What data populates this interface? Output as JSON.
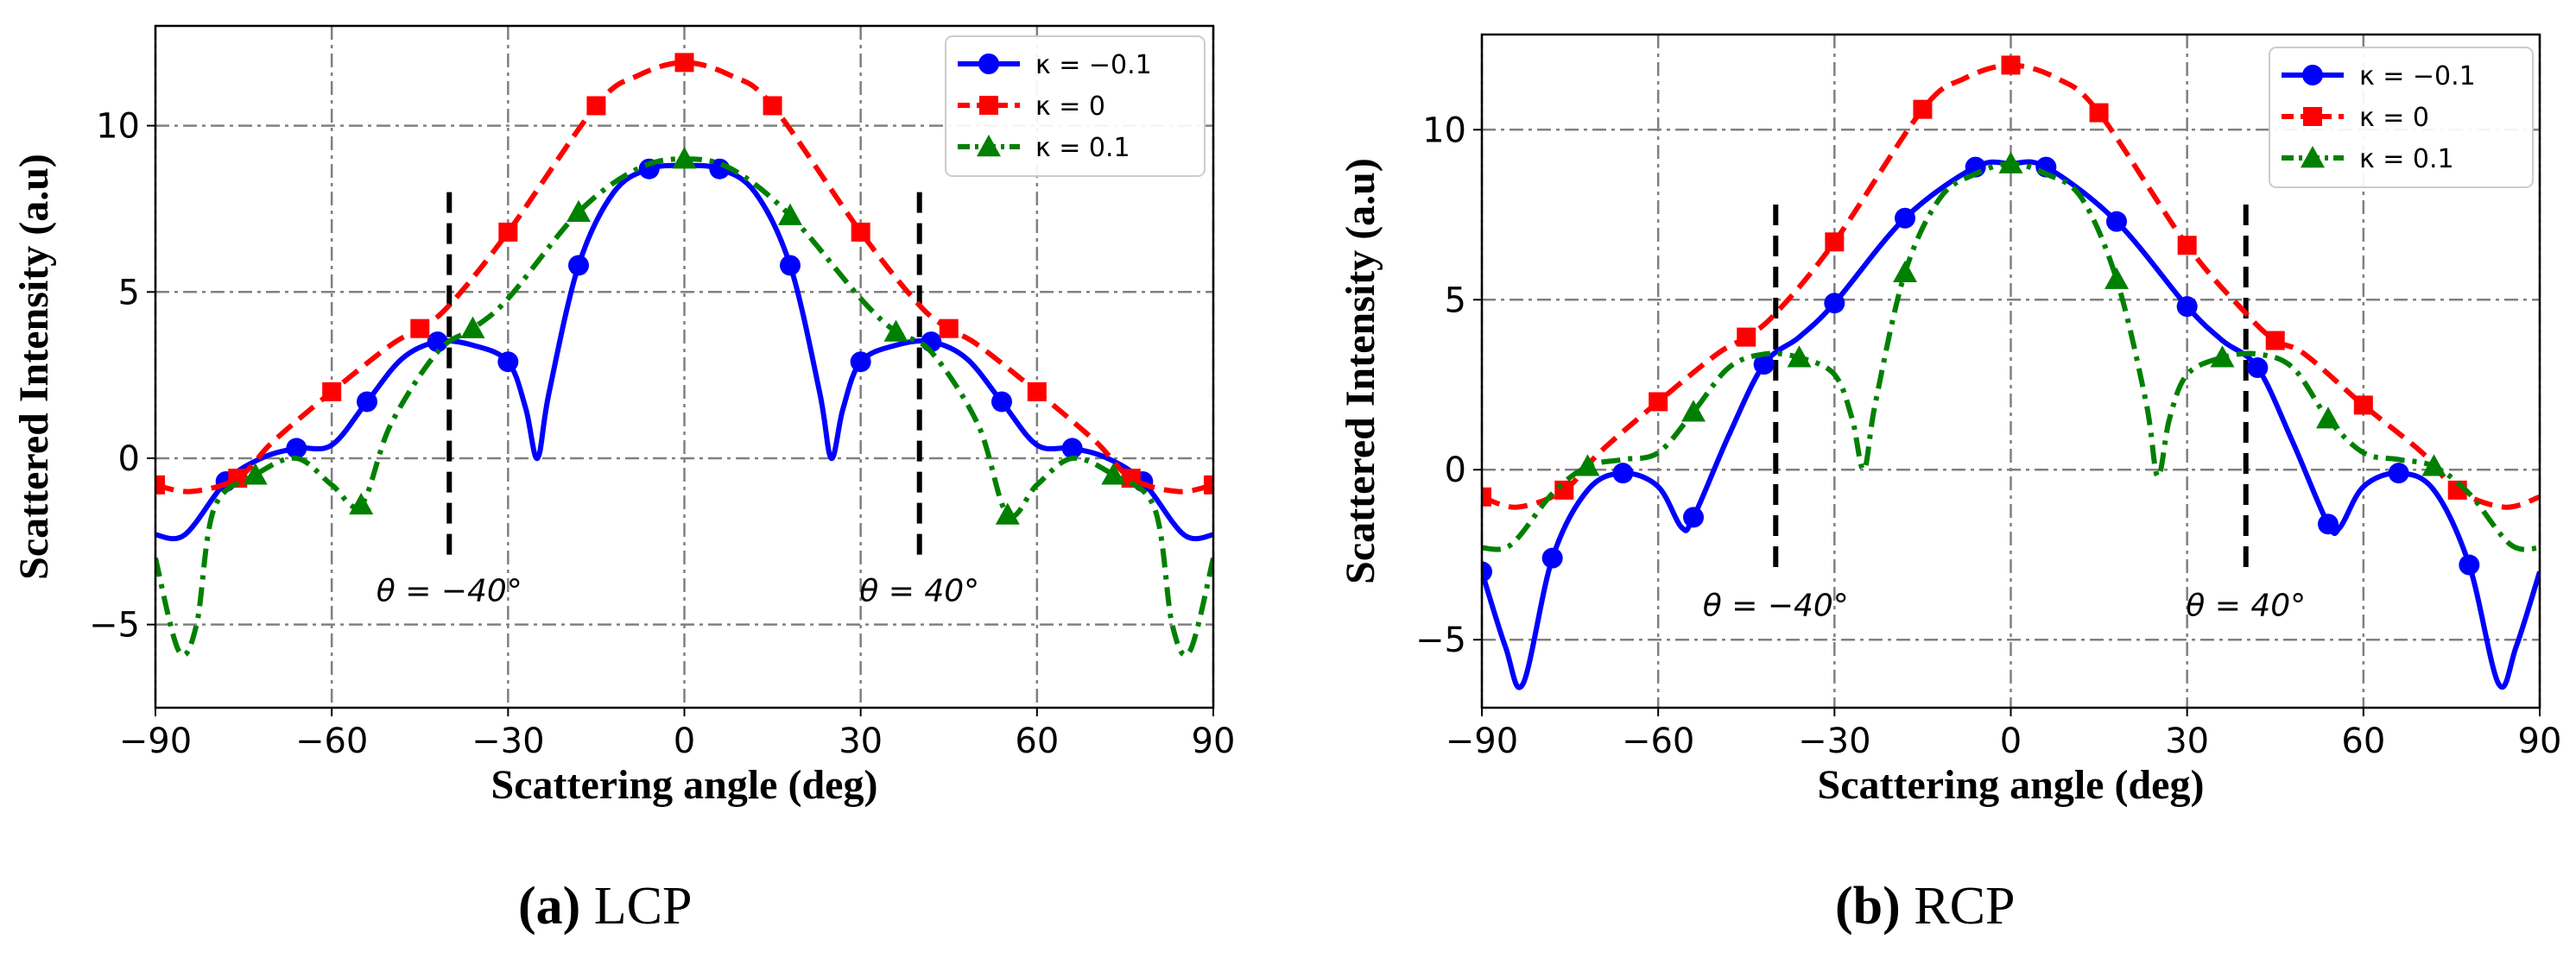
{
  "captions": [
    {
      "label": "(a)",
      "text": "LCP"
    },
    {
      "label": "(b)",
      "text": "RCP"
    }
  ],
  "colors": {
    "k_neg": "#0000ff",
    "k_zero": "#ff0000",
    "k_pos": "#008000",
    "grid": "#808080",
    "marker_line": "#000000"
  },
  "chart_data": [
    {
      "type": "line",
      "panel": "LCP",
      "xlabel": "Scattering angle (deg)",
      "ylabel": "Scattered Intensity (a.u)",
      "xlim": [
        -90,
        90
      ],
      "ylim": [
        -7.5,
        13.0
      ],
      "xticks": [
        -90,
        -60,
        -30,
        0,
        30,
        60,
        90
      ],
      "yticks": [
        -5,
        0,
        5,
        10
      ],
      "grid": true,
      "legend_position": "top-right",
      "annotations": [
        {
          "text": "θ = −40°",
          "x": -40,
          "line_y": [
            -3.0,
            8.0
          ]
        },
        {
          "text": "θ = 40°",
          "x": 40,
          "line_y": [
            -3.0,
            8.0
          ]
        }
      ],
      "series": [
        {
          "name": "κ = −0.1",
          "style": "solid",
          "marker": "circle",
          "x": [
            -90,
            -85,
            -78,
            -72,
            -66,
            -60,
            -54,
            -48,
            -42,
            -36,
            -30,
            -27,
            -25,
            -23,
            -18,
            -12,
            -6,
            0,
            6,
            12,
            18,
            23,
            25,
            27,
            30,
            36,
            42,
            48,
            54,
            60,
            66,
            72,
            78,
            85,
            90
          ],
          "y": [
            -2.3,
            -2.3,
            -0.7,
            0.0,
            0.3,
            0.4,
            1.7,
            3.0,
            3.5,
            3.4,
            2.9,
            1.5,
            0.0,
            2.0,
            5.8,
            8.0,
            8.7,
            8.8,
            8.7,
            8.0,
            5.8,
            2.0,
            0.0,
            1.5,
            2.9,
            3.4,
            3.5,
            3.0,
            1.7,
            0.4,
            0.3,
            0.0,
            -0.7,
            -2.3,
            -2.3
          ],
          "marker_x": [
            -78,
            -66,
            -54,
            -42,
            -30,
            -18,
            -6,
            6,
            18,
            30,
            42,
            54,
            66,
            78
          ],
          "marker_y": [
            -0.7,
            0.3,
            1.7,
            3.5,
            2.9,
            5.8,
            8.7,
            8.7,
            5.8,
            2.9,
            3.5,
            1.7,
            0.3,
            -0.7
          ]
        },
        {
          "name": "κ = 0",
          "style": "dashed",
          "marker": "square",
          "x": [
            -90,
            -84,
            -76,
            -70,
            -60,
            -50,
            -45,
            -40,
            -30,
            -15,
            -8,
            0,
            8,
            15,
            30,
            40,
            45,
            50,
            60,
            70,
            76,
            84,
            90
          ],
          "y": [
            -0.8,
            -1.0,
            -0.6,
            0.5,
            2.0,
            3.4,
            3.9,
            4.6,
            6.8,
            10.6,
            11.5,
            11.9,
            11.5,
            10.6,
            6.8,
            4.6,
            3.9,
            3.4,
            2.0,
            0.5,
            -0.6,
            -1.0,
            -0.8
          ],
          "marker_x": [
            -90,
            -76,
            -60,
            -45,
            -30,
            -15,
            0,
            15,
            30,
            45,
            60,
            76,
            90
          ],
          "marker_y": [
            -0.8,
            -0.6,
            2.0,
            3.9,
            6.8,
            10.6,
            11.9,
            10.6,
            6.8,
            3.9,
            2.0,
            -0.6,
            -0.8
          ]
        },
        {
          "name": "κ = 0.1",
          "style": "dashdot",
          "marker": "triangle",
          "x": [
            -90,
            -86,
            -83,
            -80,
            -73,
            -66,
            -60,
            -55,
            -50,
            -42,
            -36,
            -30,
            -18,
            -8,
            0,
            8,
            18,
            30,
            36,
            42,
            50,
            55,
            60,
            66,
            73,
            80,
            83,
            86,
            90
          ],
          "y": [
            -3.0,
            -5.8,
            -5.0,
            -1.5,
            -0.5,
            0.0,
            -0.8,
            -1.4,
            1.0,
            3.2,
            3.9,
            4.8,
            7.4,
            8.7,
            9.0,
            8.7,
            7.3,
            4.8,
            3.8,
            3.2,
            1.0,
            -1.7,
            -0.8,
            0.0,
            -0.5,
            -1.5,
            -5.0,
            -5.8,
            -3.0
          ],
          "marker_x": [
            -73,
            -55,
            -36,
            -18,
            0,
            18,
            36,
            55,
            73
          ],
          "marker_y": [
            -0.5,
            -1.4,
            3.9,
            7.4,
            9.0,
            7.3,
            3.8,
            -1.7,
            -0.5
          ]
        }
      ]
    },
    {
      "type": "line",
      "panel": "RCP",
      "xlabel": "Scattering angle (deg)",
      "ylabel": "Scattered Intensity (a.u)",
      "xlim": [
        -90,
        90
      ],
      "ylim": [
        -7.0,
        12.8
      ],
      "xticks": [
        -90,
        -60,
        -30,
        0,
        30,
        60,
        90
      ],
      "yticks": [
        -5,
        0,
        5,
        10
      ],
      "grid": true,
      "legend_position": "top-right",
      "annotations": [
        {
          "text": "θ = −40°",
          "x": -40,
          "line_y": [
            -3.0,
            7.8
          ]
        },
        {
          "text": "θ = 40°",
          "x": 40,
          "line_y": [
            -3.0,
            7.8
          ]
        }
      ],
      "series": [
        {
          "name": "κ = −0.1",
          "style": "solid",
          "marker": "circle",
          "x": [
            -90,
            -86,
            -83,
            -78,
            -72,
            -66,
            -60,
            -56,
            -54,
            -48,
            -42,
            -36,
            -30,
            -18,
            -6,
            0,
            6,
            18,
            30,
            36,
            42,
            48,
            54,
            56,
            60,
            66,
            72,
            78,
            83,
            86,
            90
          ],
          "y": [
            -3.0,
            -5.2,
            -6.3,
            -2.6,
            -0.6,
            -0.1,
            -0.5,
            -1.7,
            -1.4,
            1.0,
            3.1,
            3.9,
            4.9,
            7.4,
            8.9,
            9.0,
            8.9,
            7.3,
            4.8,
            3.8,
            3.0,
            0.8,
            -1.6,
            -1.7,
            -0.5,
            -0.1,
            -0.6,
            -2.8,
            -6.3,
            -5.2,
            -3.0
          ],
          "marker_x": [
            -90,
            -78,
            -66,
            -54,
            -42,
            -30,
            -18,
            -6,
            6,
            18,
            30,
            42,
            54,
            66,
            78
          ],
          "marker_y": [
            -3.0,
            -2.6,
            -0.1,
            -1.4,
            3.1,
            4.9,
            7.4,
            8.9,
            8.9,
            7.3,
            4.8,
            3.0,
            -1.6,
            -0.1,
            -2.8
          ]
        },
        {
          "name": "κ = 0",
          "style": "dashed",
          "marker": "square",
          "x": [
            -90,
            -84,
            -76,
            -70,
            -60,
            -50,
            -45,
            -40,
            -30,
            -15,
            -8,
            0,
            8,
            15,
            30,
            40,
            45,
            50,
            60,
            70,
            76,
            84,
            90
          ],
          "y": [
            -0.8,
            -1.1,
            -0.6,
            0.5,
            2.0,
            3.4,
            3.9,
            4.6,
            6.7,
            10.6,
            11.5,
            11.9,
            11.5,
            10.5,
            6.6,
            4.6,
            3.8,
            3.4,
            1.9,
            0.5,
            -0.6,
            -1.1,
            -0.8
          ],
          "marker_x": [
            -90,
            -76,
            -60,
            -45,
            -30,
            -15,
            0,
            15,
            30,
            45,
            60,
            76
          ],
          "marker_y": [
            -0.8,
            -0.6,
            2.0,
            3.9,
            6.7,
            10.6,
            11.9,
            10.5,
            6.6,
            3.8,
            1.9,
            -0.6
          ]
        },
        {
          "name": "κ = 0.1",
          "style": "dashdot",
          "marker": "triangle",
          "x": [
            -90,
            -85,
            -78,
            -72,
            -66,
            -60,
            -54,
            -48,
            -42,
            -36,
            -30,
            -27,
            -25,
            -23,
            -18,
            -12,
            -6,
            0,
            6,
            12,
            18,
            23,
            25,
            27,
            30,
            36,
            42,
            48,
            54,
            60,
            66,
            72,
            78,
            85,
            90
          ],
          "y": [
            -2.3,
            -2.2,
            -0.7,
            0.1,
            0.3,
            0.5,
            1.7,
            3.0,
            3.4,
            3.3,
            2.8,
            1.5,
            0.0,
            2.0,
            5.8,
            8.0,
            8.7,
            9.0,
            8.7,
            8.0,
            5.6,
            2.0,
            -0.2,
            1.5,
            2.8,
            3.3,
            3.4,
            3.0,
            1.5,
            0.5,
            0.3,
            0.1,
            -0.7,
            -2.2,
            -2.3
          ],
          "marker_x": [
            -72,
            -54,
            -36,
            -18,
            0,
            18,
            36,
            54,
            72
          ],
          "marker_y": [
            0.1,
            1.7,
            3.3,
            5.8,
            9.0,
            5.6,
            3.3,
            1.5,
            0.1
          ]
        }
      ]
    }
  ]
}
